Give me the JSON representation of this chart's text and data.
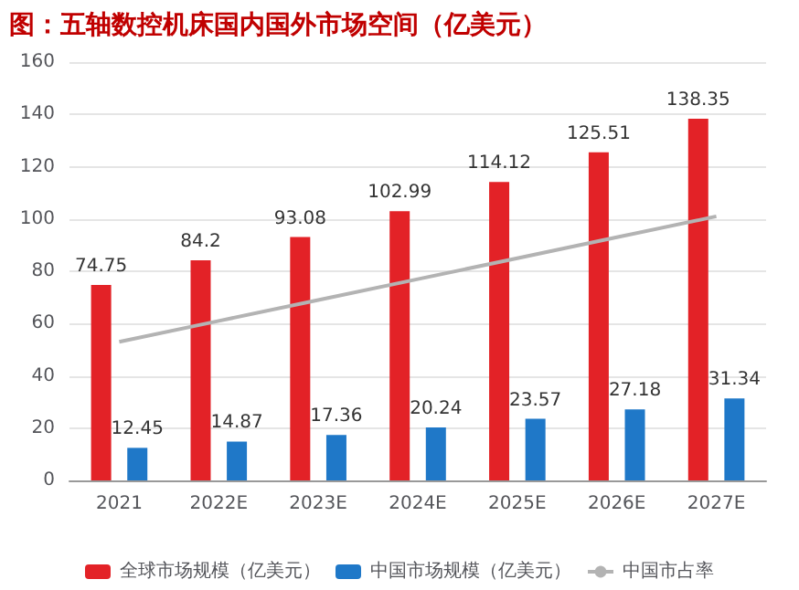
{
  "chart_data": {
    "type": "bar",
    "title": "图：五轴数控机床国内国外市场空间（亿美元）",
    "categories": [
      "2021",
      "2022E",
      "2023E",
      "2024E",
      "2025E",
      "2026E",
      "2027E"
    ],
    "series": [
      {
        "name": "全球市场规模（亿美元）",
        "color": "#e32227",
        "values": [
          74.75,
          84.2,
          93.08,
          102.99,
          114.12,
          125.51,
          138.35
        ],
        "value_labels": [
          "74.75",
          "84.2",
          "93.08",
          "102.99",
          "114.12",
          "125.51",
          "138.35"
        ]
      },
      {
        "name": "中国市场规模（亿美元）",
        "color": "#1f78c8",
        "values": [
          12.45,
          14.87,
          17.36,
          20.24,
          23.57,
          27.18,
          31.34
        ],
        "value_labels": [
          "12.45",
          "14.87",
          "17.36",
          "20.24",
          "23.57",
          "27.18",
          "31.34"
        ]
      },
      {
        "name": "中国市占率",
        "type": "line",
        "color": "#b3b3b3",
        "values": [
          53,
          61,
          69,
          77,
          85,
          93,
          101
        ]
      }
    ],
    "ylim": [
      0,
      160
    ],
    "yticks": [
      0,
      20,
      40,
      60,
      80,
      100,
      120,
      140,
      160
    ],
    "grid": "y",
    "legend": "bottom",
    "marker": "none",
    "line_style": "solid"
  }
}
